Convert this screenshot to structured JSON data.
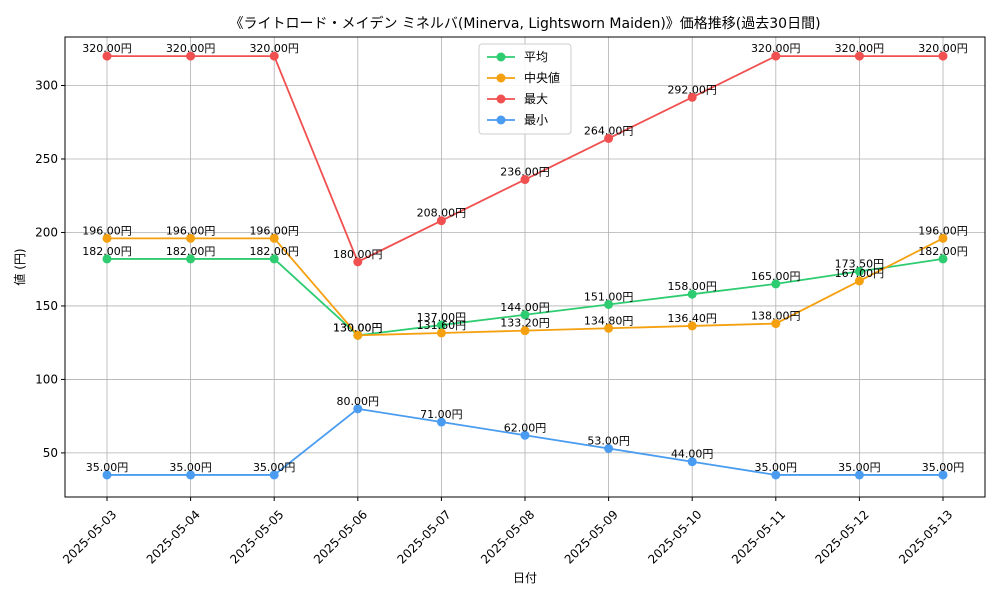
{
  "chart_data": {
    "type": "line",
    "title": "《ライトロード・メイデン ミネルバ(Minerva, Lightsworn Maiden)》価格推移(過去30日間)",
    "xlabel": "日付",
    "ylabel": "値 (円)",
    "categories": [
      "2025-05-03",
      "2025-05-04",
      "2025-05-05",
      "2025-05-06",
      "2025-05-07",
      "2025-05-08",
      "2025-05-09",
      "2025-05-10",
      "2025-05-11",
      "2025-05-12",
      "2025-05-13"
    ],
    "ylim": [
      20,
      333
    ],
    "yticks": [
      50,
      100,
      150,
      200,
      250,
      300
    ],
    "grid": true,
    "legend_position": "top-center",
    "label_suffix": "円",
    "series": [
      {
        "name": "平均",
        "color": "#2ecc71",
        "values": [
          182,
          182,
          182,
          130,
          137,
          144,
          151,
          158,
          165,
          173.5,
          182
        ]
      },
      {
        "name": "中央値",
        "color": "#f5a00f",
        "values": [
          196,
          196,
          196,
          130,
          131.6,
          133.2,
          134.8,
          136.4,
          138,
          167,
          196
        ]
      },
      {
        "name": "最大",
        "color": "#f05050",
        "values": [
          320,
          320,
          320,
          180,
          208,
          236,
          264,
          292,
          320,
          320,
          320
        ]
      },
      {
        "name": "最小",
        "color": "#4a9cf0",
        "values": [
          35,
          35,
          35,
          80,
          71,
          62,
          53,
          44,
          35,
          35,
          35
        ]
      }
    ]
  }
}
